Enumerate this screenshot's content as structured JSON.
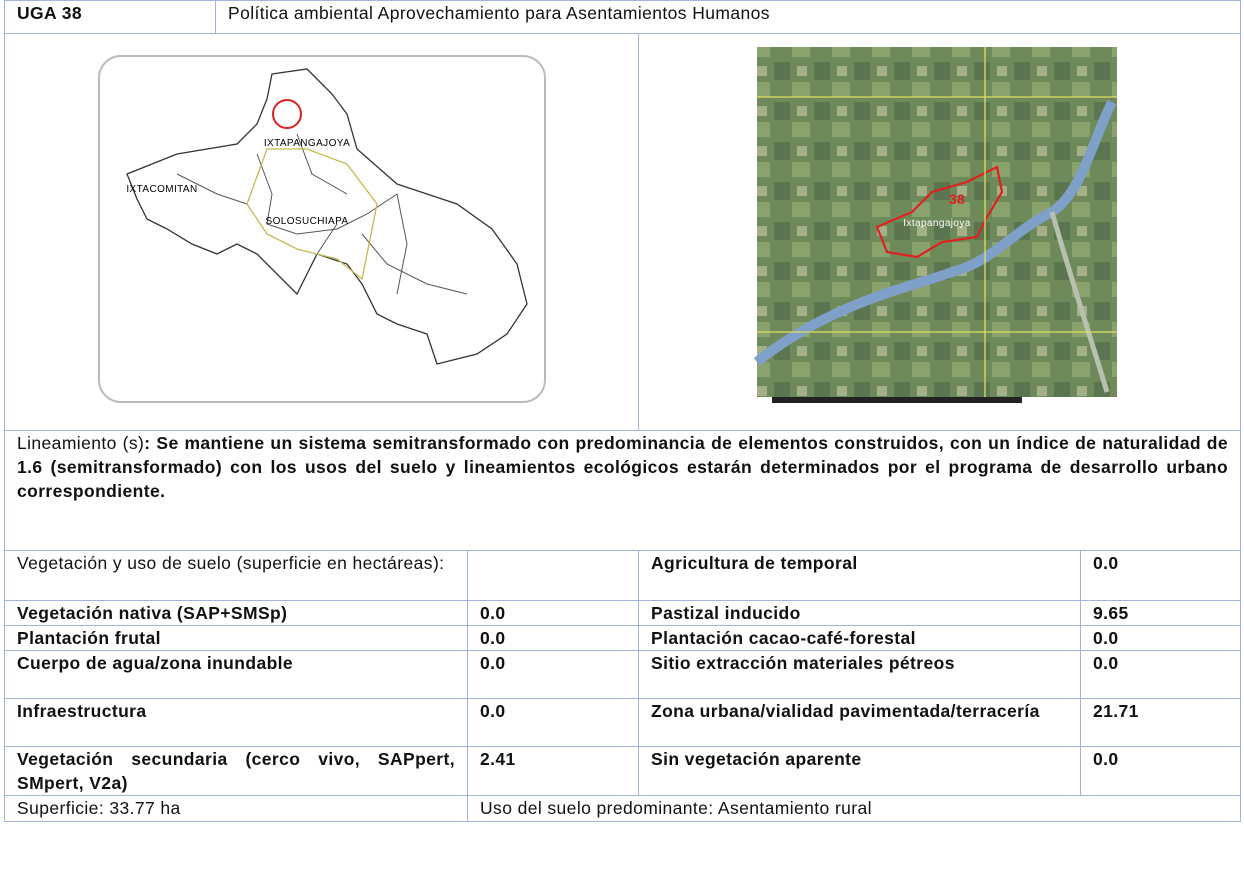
{
  "header": {
    "code": "UGA 38",
    "title": "Política ambiental Aprovechamiento para Asentamientos Humanos"
  },
  "maps": {
    "left": {
      "labels": [
        "IXTAPANGAJOYA",
        "IXTACOMITAN",
        "SOLOSUCHIAPA"
      ]
    },
    "right": {
      "unit": "38",
      "label": "Ixtapangajoya"
    }
  },
  "guideline": {
    "label": "Lineamiento (s)",
    "text": ": Se mantiene un sistema semitransformado con predominancia de elementos construidos, con un índice de naturalidad de 1.6 (semitransformado) con los usos del suelo y lineamientos ecológicos estarán determinados por el programa de desarrollo urbano correspondiente."
  },
  "land_use": {
    "heading": "Vegetación y uso de suelo (superficie en hectáreas):",
    "left": [
      [
        "Vegetación nativa (SAP+SMSp)",
        "0.0"
      ],
      [
        "Plantación frutal",
        "0.0"
      ],
      [
        "Cuerpo de agua/zona inundable",
        "0.0"
      ],
      [
        "Infraestructura",
        "0.0"
      ],
      [
        "Vegetación secundaria (cerco vivo, SAPpert, SMpert, V2a)",
        "2.41"
      ]
    ],
    "right": [
      [
        "Agricultura de temporal",
        "0.0"
      ],
      [
        "Pastizal inducido",
        "9.65"
      ],
      [
        "Plantación cacao-café-forestal",
        "0.0"
      ],
      [
        "Sitio extracción materiales pétreos",
        "0.0"
      ],
      [
        "Zona urbana/vialidad pavimentada/terracería",
        "21.71"
      ],
      [
        "Sin vegetación aparente",
        "0.0"
      ]
    ]
  },
  "footer": {
    "area": "Superficie: 33.77 ha",
    "predominant": "Uso del suelo predominante: Asentamiento rural"
  }
}
